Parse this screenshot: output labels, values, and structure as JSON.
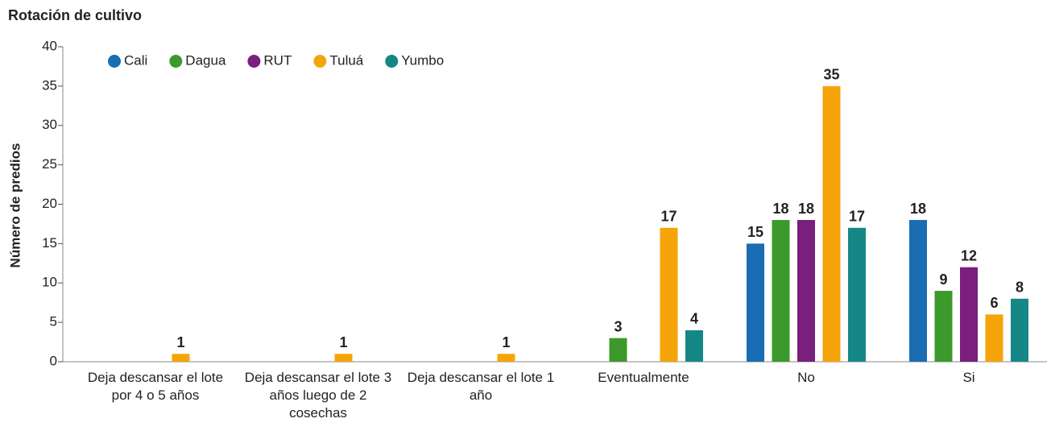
{
  "chart_data": {
    "type": "bar",
    "title": "Rotación de cultivo",
    "y_label": "Número de predios",
    "categories": [
      "Deja descansar el lote por 4 o 5 años",
      "Deja descansar el lote 3 años luego de 2 cosechas",
      "Deja descansar el lote 1 año",
      "Eventualmente",
      "No",
      "Si"
    ],
    "series": [
      {
        "name": "Cali",
        "color": "#1a6db3",
        "values": [
          null,
          null,
          null,
          null,
          15,
          18
        ]
      },
      {
        "name": "Dagua",
        "color": "#3c9a2c",
        "values": [
          null,
          null,
          null,
          3,
          18,
          9
        ]
      },
      {
        "name": "RUT",
        "color": "#7a1f7c",
        "values": [
          null,
          null,
          null,
          null,
          18,
          12
        ]
      },
      {
        "name": "Tuluá",
        "color": "#f5a50a",
        "values": [
          1,
          1,
          1,
          17,
          35,
          6
        ]
      },
      {
        "name": "Yumbo",
        "color": "#168787",
        "values": [
          null,
          null,
          null,
          4,
          17,
          8
        ]
      }
    ],
    "ylim": [
      0,
      40
    ],
    "yticks": [
      0,
      5,
      10,
      15,
      20,
      25,
      30,
      35,
      40
    ]
  }
}
